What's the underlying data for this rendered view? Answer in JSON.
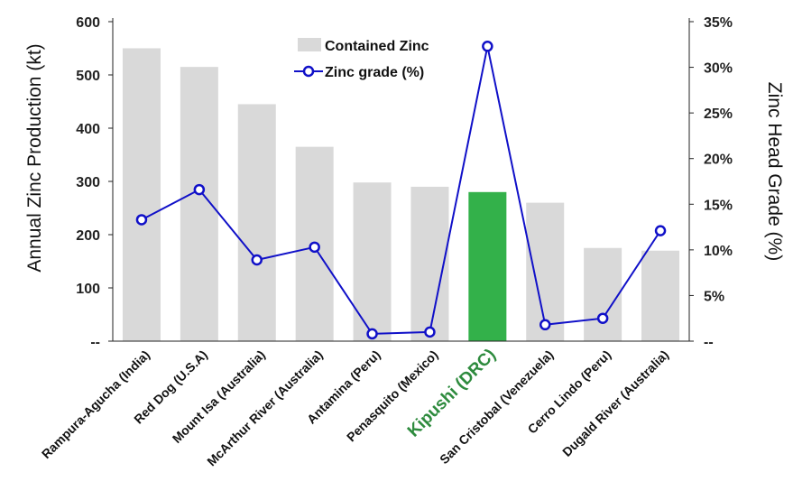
{
  "chart_data": {
    "type": "bar+line",
    "categories": [
      "Rampura-Agucha (India)",
      "Red Dog (U.S.A)",
      "Mount Isa (Australia)",
      "McArthur River (Australia)",
      "Antamina (Peru)",
      "Penasquito (Mexico)",
      "Kipushi (DRC)",
      "San Cristobal (Venezuela)",
      "Cerro Lindo (Peru)",
      "Dugald River (Australia)"
    ],
    "highlight_category": "Kipushi (DRC)",
    "series": [
      {
        "name": "Contained Zinc",
        "kind": "bar",
        "axis": "left",
        "values": [
          550,
          515,
          445,
          365,
          298,
          290,
          280,
          260,
          175,
          170
        ]
      },
      {
        "name": "Zinc grade (%)",
        "kind": "line",
        "axis": "right",
        "values": [
          13.3,
          16.6,
          8.9,
          10.3,
          0.8,
          1.0,
          32.3,
          1.8,
          2.5,
          12.1
        ]
      }
    ],
    "ylabel": "Annual Zinc Production (kt)",
    "y2label": "Zinc Head Grade (%)",
    "ylim": [
      0,
      600
    ],
    "y2lim": [
      0,
      35
    ],
    "yticks": [
      "--",
      "100",
      "200",
      "300",
      "400",
      "500",
      "600"
    ],
    "y2ticks": [
      "--",
      "5%",
      "10%",
      "15%",
      "20%",
      "25%",
      "30%",
      "35%"
    ],
    "grid": false,
    "legend": "top-center",
    "colors": {
      "bar": "#d9d9d9",
      "bar_highlight": "#33b14a",
      "line": "#1010c8",
      "marker_fill": "#ffffff",
      "highlight_label": "#2e8b3e"
    }
  }
}
